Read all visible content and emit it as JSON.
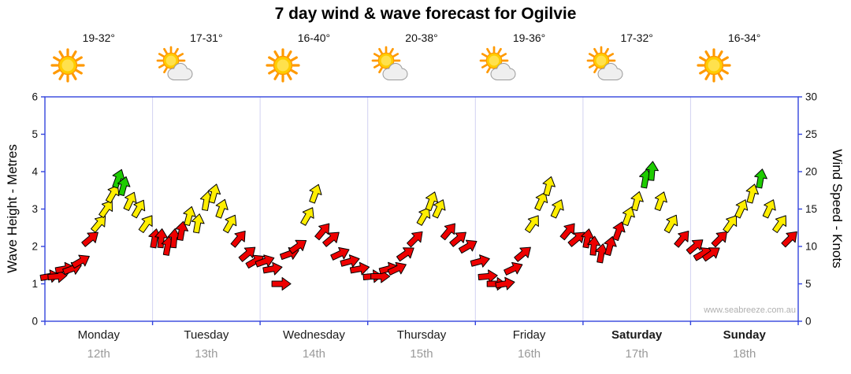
{
  "title": "7 day wind & wave forecast for Ogilvie",
  "watermark": "www.seabreeze.com.au",
  "left_axis": {
    "label": "Wave Height - Metres",
    "ticks": [
      0,
      1,
      2,
      3,
      4,
      5,
      6
    ]
  },
  "right_axis": {
    "label": "Wind Speed - Knots",
    "ticks": [
      0,
      5,
      10,
      15,
      20,
      25,
      30
    ]
  },
  "days": [
    {
      "name": "Monday",
      "date": "12th",
      "temp": "19-32°",
      "icon": "sunny",
      "bold": false
    },
    {
      "name": "Tuesday",
      "date": "13th",
      "temp": "17-31°",
      "icon": "sun-cloud",
      "bold": false
    },
    {
      "name": "Wednesday",
      "date": "14th",
      "temp": "16-40°",
      "icon": "sunny",
      "bold": false
    },
    {
      "name": "Thursday",
      "date": "15th",
      "temp": "20-38°",
      "icon": "sun-cloud",
      "bold": false
    },
    {
      "name": "Friday",
      "date": "16th",
      "temp": "19-36°",
      "icon": "sun-cloud",
      "bold": false
    },
    {
      "name": "Saturday",
      "date": "17th",
      "temp": "17-32°",
      "icon": "sun-cloud",
      "bold": true
    },
    {
      "name": "Sunday",
      "date": "18th",
      "temp": "16-34°",
      "icon": "sunny",
      "bold": true
    }
  ],
  "colors": {
    "red": "#ee0000",
    "yellow": "#ffee00",
    "green": "#1ecc00",
    "axis": "#3344dd",
    "grid": "#b9b9ea",
    "date_text": "#9a9a9a"
  },
  "chart_data": {
    "type": "scatter",
    "subtype": "wind-arrows",
    "title": "7 day wind & wave forecast for Ogilvie",
    "x_categories": [
      "Monday 12th",
      "Tuesday 13th",
      "Wednesday 14th",
      "Thursday 15th",
      "Friday 16th",
      "Saturday 17th",
      "Sunday 18th"
    ],
    "y_axis_left": {
      "label": "Wave Height - Metres",
      "range": [
        0,
        6
      ]
    },
    "y_axis_right": {
      "label": "Wind Speed - Knots",
      "range": [
        0,
        30
      ]
    },
    "grid": "day-boundaries-only",
    "legend": "none",
    "point_columns": [
      "day_index",
      "day_fraction",
      "knots",
      "color",
      "angle_deg"
    ],
    "points": [
      [
        0,
        0.04,
        6,
        "red",
        -10
      ],
      [
        0,
        0.11,
        6,
        "red",
        -5
      ],
      [
        0,
        0.18,
        7,
        "red",
        -10
      ],
      [
        0,
        0.25,
        7,
        "red",
        -20
      ],
      [
        0,
        0.33,
        8,
        "red",
        -30
      ],
      [
        0,
        0.42,
        11,
        "red",
        -40
      ],
      [
        0,
        0.5,
        13,
        "yellow",
        -50
      ],
      [
        0,
        0.57,
        15,
        "yellow",
        -55
      ],
      [
        0,
        0.63,
        17,
        "yellow",
        -60
      ],
      [
        0,
        0.68,
        19,
        "green",
        -70
      ],
      [
        0,
        0.73,
        18,
        "green",
        -75
      ],
      [
        0,
        0.79,
        16,
        "yellow",
        -65
      ],
      [
        0,
        0.87,
        15,
        "yellow",
        -60
      ],
      [
        0,
        0.94,
        13,
        "yellow",
        -55
      ],
      [
        1,
        0.02,
        11,
        "red",
        -80
      ],
      [
        1,
        0.08,
        11,
        "red",
        -85
      ],
      [
        1,
        0.14,
        10,
        "red",
        -80
      ],
      [
        1,
        0.2,
        11,
        "red",
        -85
      ],
      [
        1,
        0.27,
        12,
        "red",
        -80
      ],
      [
        1,
        0.34,
        14,
        "yellow",
        -75
      ],
      [
        1,
        0.42,
        13,
        "yellow",
        -80
      ],
      [
        1,
        0.5,
        16,
        "yellow",
        -80
      ],
      [
        1,
        0.57,
        17,
        "yellow",
        -75
      ],
      [
        1,
        0.64,
        15,
        "yellow",
        -70
      ],
      [
        1,
        0.72,
        13,
        "yellow",
        -60
      ],
      [
        1,
        0.8,
        11,
        "red",
        -50
      ],
      [
        1,
        0.88,
        9,
        "red",
        -40
      ],
      [
        1,
        0.95,
        8,
        "red",
        -30
      ],
      [
        2,
        0.04,
        8,
        "red",
        -20
      ],
      [
        2,
        0.11,
        7,
        "red",
        -10
      ],
      [
        2,
        0.19,
        5,
        "red",
        0
      ],
      [
        2,
        0.27,
        9,
        "red",
        -20
      ],
      [
        2,
        0.35,
        10,
        "red",
        -35
      ],
      [
        2,
        0.44,
        14,
        "yellow",
        -60
      ],
      [
        2,
        0.51,
        17,
        "yellow",
        -70
      ],
      [
        2,
        0.58,
        12,
        "red",
        -50
      ],
      [
        2,
        0.66,
        11,
        "red",
        -40
      ],
      [
        2,
        0.74,
        9,
        "red",
        -25
      ],
      [
        2,
        0.83,
        8,
        "red",
        -15
      ],
      [
        2,
        0.92,
        7,
        "red",
        -10
      ],
      [
        3,
        0.04,
        6,
        "red",
        -5
      ],
      [
        3,
        0.11,
        6,
        "red",
        0
      ],
      [
        3,
        0.19,
        7,
        "red",
        -15
      ],
      [
        3,
        0.27,
        7,
        "red",
        -25
      ],
      [
        3,
        0.35,
        9,
        "red",
        -35
      ],
      [
        3,
        0.44,
        11,
        "red",
        -45
      ],
      [
        3,
        0.52,
        14,
        "yellow",
        -60
      ],
      [
        3,
        0.59,
        16,
        "yellow",
        -70
      ],
      [
        3,
        0.66,
        15,
        "yellow",
        -65
      ],
      [
        3,
        0.75,
        12,
        "red",
        -50
      ],
      [
        3,
        0.84,
        11,
        "red",
        -40
      ],
      [
        3,
        0.93,
        10,
        "red",
        -30
      ],
      [
        4,
        0.04,
        8,
        "red",
        -15
      ],
      [
        4,
        0.11,
        6,
        "red",
        -5
      ],
      [
        4,
        0.19,
        5,
        "red",
        0
      ],
      [
        4,
        0.27,
        5,
        "red",
        -10
      ],
      [
        4,
        0.35,
        7,
        "red",
        -25
      ],
      [
        4,
        0.44,
        9,
        "red",
        -40
      ],
      [
        4,
        0.53,
        13,
        "yellow",
        -55
      ],
      [
        4,
        0.61,
        16,
        "yellow",
        -65
      ],
      [
        4,
        0.68,
        18,
        "yellow",
        -75
      ],
      [
        4,
        0.76,
        15,
        "yellow",
        -65
      ],
      [
        4,
        0.86,
        12,
        "red",
        -50
      ],
      [
        4,
        0.94,
        11,
        "red",
        -40
      ],
      [
        5,
        0.04,
        11,
        "red",
        -80
      ],
      [
        5,
        0.1,
        10,
        "red",
        -85
      ],
      [
        5,
        0.17,
        9,
        "red",
        -80
      ],
      [
        5,
        0.25,
        10,
        "red",
        -75
      ],
      [
        5,
        0.33,
        12,
        "red",
        -70
      ],
      [
        5,
        0.42,
        14,
        "yellow",
        -70
      ],
      [
        5,
        0.5,
        16,
        "yellow",
        -75
      ],
      [
        5,
        0.58,
        19,
        "green",
        -80
      ],
      [
        5,
        0.64,
        20,
        "green",
        -85
      ],
      [
        5,
        0.72,
        16,
        "yellow",
        -70
      ],
      [
        5,
        0.82,
        13,
        "yellow",
        -60
      ],
      [
        5,
        0.92,
        11,
        "red",
        -50
      ],
      [
        6,
        0.04,
        10,
        "red",
        -40
      ],
      [
        6,
        0.11,
        9,
        "red",
        -30
      ],
      [
        6,
        0.19,
        9,
        "red",
        -35
      ],
      [
        6,
        0.27,
        11,
        "red",
        -45
      ],
      [
        6,
        0.37,
        13,
        "yellow",
        -55
      ],
      [
        6,
        0.47,
        15,
        "yellow",
        -65
      ],
      [
        6,
        0.57,
        17,
        "yellow",
        -75
      ],
      [
        6,
        0.65,
        19,
        "green",
        -80
      ],
      [
        6,
        0.73,
        15,
        "yellow",
        -65
      ],
      [
        6,
        0.83,
        13,
        "yellow",
        -55
      ],
      [
        6,
        0.92,
        11,
        "red",
        -45
      ]
    ]
  }
}
